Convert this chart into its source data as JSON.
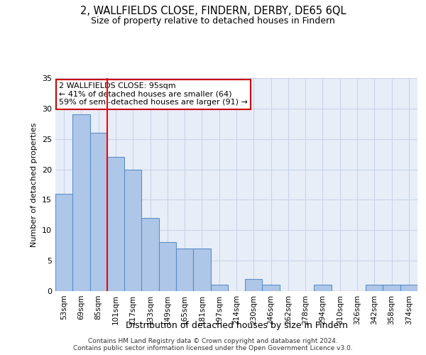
{
  "title": "2, WALLFIELDS CLOSE, FINDERN, DERBY, DE65 6QL",
  "subtitle": "Size of property relative to detached houses in Findern",
  "xlabel": "Distribution of detached houses by size in Findern",
  "ylabel": "Number of detached properties",
  "categories": [
    "53sqm",
    "69sqm",
    "85sqm",
    "101sqm",
    "117sqm",
    "133sqm",
    "149sqm",
    "165sqm",
    "181sqm",
    "197sqm",
    "214sqm",
    "230sqm",
    "246sqm",
    "262sqm",
    "278sqm",
    "294sqm",
    "310sqm",
    "326sqm",
    "342sqm",
    "358sqm",
    "374sqm"
  ],
  "values": [
    16,
    29,
    26,
    22,
    20,
    12,
    8,
    7,
    7,
    1,
    0,
    2,
    1,
    0,
    0,
    1,
    0,
    0,
    1,
    1,
    1
  ],
  "bar_color": "#aec6e8",
  "bar_edge_color": "#5b8fc9",
  "bar_linewidth": 0.8,
  "grid_color": "#c8d4e8",
  "bg_color": "#e8eef8",
  "red_line_x": 2.5,
  "annotation_text": "2 WALLFIELDS CLOSE: 95sqm\n← 41% of detached houses are smaller (64)\n59% of semi-detached houses are larger (91) →",
  "annotation_box_color": "#ffffff",
  "annotation_edge_color": "#cc0000",
  "ylim": [
    0,
    35
  ],
  "yticks": [
    0,
    5,
    10,
    15,
    20,
    25,
    30,
    35
  ],
  "footer1": "Contains HM Land Registry data © Crown copyright and database right 2024.",
  "footer2": "Contains public sector information licensed under the Open Government Licence v3.0."
}
